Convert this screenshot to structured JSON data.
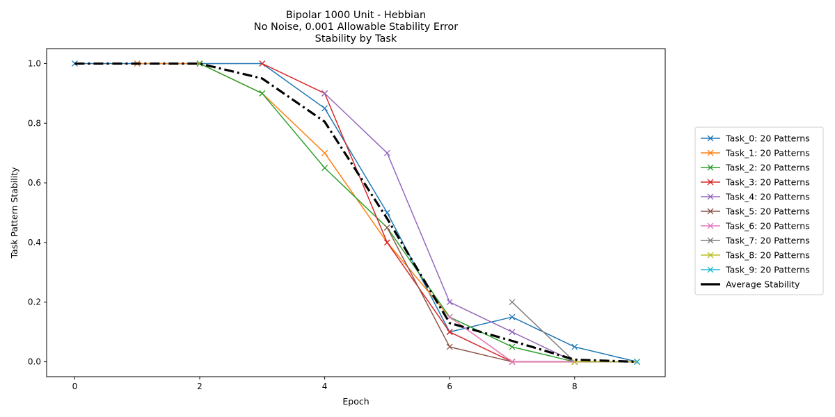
{
  "chart_data": {
    "type": "line",
    "title_lines": [
      "Bipolar 1000 Unit - Hebbian",
      "No Noise, 0.001 Allowable Stability Error",
      "Stability by Task"
    ],
    "xlabel": "Epoch",
    "ylabel": "Task Pattern Stability",
    "xlim": [
      -0.45,
      9.45
    ],
    "ylim": [
      -0.05,
      1.05
    ],
    "xticks": [
      0,
      2,
      4,
      6,
      8
    ],
    "xtick_labels": [
      "0",
      "2",
      "4",
      "6",
      "8"
    ],
    "yticks": [
      0.0,
      0.2,
      0.4,
      0.6,
      0.8,
      1.0
    ],
    "ytick_labels": [
      "0.0",
      "0.2",
      "0.4",
      "0.6",
      "0.8",
      "1.0"
    ],
    "grid": false,
    "legend_position": "right-outside",
    "series": [
      {
        "name": "Task_0: 20 Patterns",
        "color": "#1f77b4",
        "marker": "x",
        "x": [
          0,
          1,
          2,
          3,
          4,
          5,
          6,
          7,
          8,
          9
        ],
        "y": [
          1.0,
          1.0,
          1.0,
          1.0,
          0.85,
          0.5,
          0.1,
          0.15,
          0.05,
          0.0
        ]
      },
      {
        "name": "Task_1: 20 Patterns",
        "color": "#ff7f0e",
        "marker": "x",
        "x": [
          1,
          2,
          3,
          4,
          5,
          6,
          7,
          8,
          9
        ],
        "y": [
          1.0,
          1.0,
          0.9,
          0.7,
          0.4,
          0.15,
          0.0,
          0.0,
          0.0
        ]
      },
      {
        "name": "Task_2: 20 Patterns",
        "color": "#2ca02c",
        "marker": "x",
        "x": [
          2,
          3,
          4,
          5,
          6,
          7,
          8,
          9
        ],
        "y": [
          1.0,
          0.9,
          0.65,
          0.45,
          0.15,
          0.05,
          0.0,
          0.0
        ]
      },
      {
        "name": "Task_3: 20 Patterns",
        "color": "#d62728",
        "marker": "x",
        "x": [
          3,
          4,
          5,
          6,
          7,
          8,
          9
        ],
        "y": [
          1.0,
          0.9,
          0.4,
          0.1,
          0.0,
          0.0,
          0.0
        ]
      },
      {
        "name": "Task_4: 20 Patterns",
        "color": "#9467bd",
        "marker": "x",
        "x": [
          4,
          5,
          6,
          7,
          8,
          9
        ],
        "y": [
          0.9,
          0.7,
          0.2,
          0.1,
          0.0,
          0.0
        ]
      },
      {
        "name": "Task_5: 20 Patterns",
        "color": "#8c564b",
        "marker": "x",
        "x": [
          5,
          6,
          7,
          8,
          9
        ],
        "y": [
          0.45,
          0.05,
          0.0,
          0.0,
          0.0
        ]
      },
      {
        "name": "Task_6: 20 Patterns",
        "color": "#e377c2",
        "marker": "x",
        "x": [
          6,
          7,
          8,
          9
        ],
        "y": [
          0.15,
          0.0,
          0.0,
          0.0
        ]
      },
      {
        "name": "Task_7: 20 Patterns",
        "color": "#7f7f7f",
        "marker": "x",
        "x": [
          7,
          8,
          9
        ],
        "y": [
          0.2,
          0.0,
          0.0
        ]
      },
      {
        "name": "Task_8: 20 Patterns",
        "color": "#bcbd22",
        "marker": "x",
        "x": [
          8,
          9
        ],
        "y": [
          0.0,
          0.0
        ]
      },
      {
        "name": "Task_9: 20 Patterns",
        "color": "#17becf",
        "marker": "x",
        "x": [
          9
        ],
        "y": [
          0.0
        ]
      },
      {
        "name": "Average Stability",
        "color": "#000000",
        "marker": "none",
        "dashed": true,
        "x": [
          0,
          1,
          2,
          3,
          4,
          5,
          6,
          7,
          8,
          9
        ],
        "y": [
          1.0,
          1.0,
          1.0,
          0.95,
          0.805,
          0.48,
          0.13,
          0.07,
          0.007,
          0.0
        ]
      }
    ]
  }
}
